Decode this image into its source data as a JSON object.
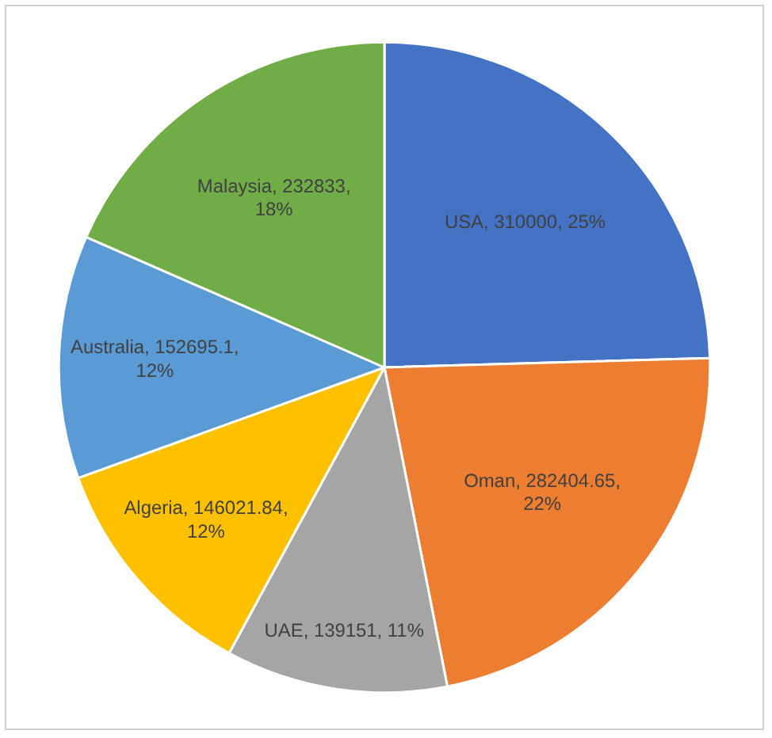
{
  "chart_data": {
    "type": "pie",
    "categories": [
      "USA",
      "Oman",
      "UAE",
      "Algeria",
      "Australia",
      "Malaysia"
    ],
    "values": [
      310000,
      282404.65,
      139151,
      146021.84,
      152695.1,
      232833
    ],
    "colors": [
      "#4472c4",
      "#ed7d31",
      "#a5a5a5",
      "#ffc000",
      "#5b9bd5",
      "#70ad47"
    ],
    "value_labels": [
      "310000, 25%",
      "282404.65, 22%",
      "139151, 11%",
      "146021.84, 12%",
      "152695.1, 12%",
      "232833, 18%"
    ],
    "legend": false
  }
}
